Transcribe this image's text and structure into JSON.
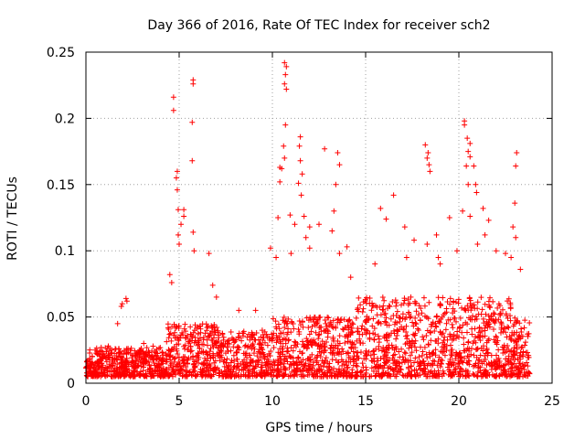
{
  "chart_data": {
    "type": "scatter",
    "title": "Day 366 of 2016, Rate Of TEC Index for receiver sch2",
    "xlabel": "GPS time / hours",
    "ylabel": "ROTI / TECUs",
    "xlim": [
      0,
      25
    ],
    "ylim": [
      0,
      0.25
    ],
    "x_ticks": [
      0,
      5,
      10,
      15,
      20,
      25
    ],
    "x_tick_labels": [
      "0",
      "5",
      "10",
      "15",
      "20",
      "25"
    ],
    "y_ticks": [
      0,
      0.05,
      0.1,
      0.15,
      0.2,
      0.25
    ],
    "y_tick_labels": [
      "0",
      "0.05",
      "0.1",
      "0.15",
      "0.2",
      "0.25"
    ],
    "grid": true,
    "marker": "+",
    "marker_color": "#ff0000",
    "series": [
      {
        "name": "ROTI",
        "points": [
          [
            4.7,
            0.216
          ],
          [
            4.7,
            0.206
          ],
          [
            5.75,
            0.229
          ],
          [
            5.75,
            0.226
          ],
          [
            5.7,
            0.197
          ],
          [
            5.7,
            0.168
          ],
          [
            4.9,
            0.16
          ],
          [
            4.85,
            0.155
          ],
          [
            4.9,
            0.146
          ],
          [
            4.95,
            0.131
          ],
          [
            5.1,
            0.12
          ],
          [
            5.25,
            0.131
          ],
          [
            5.25,
            0.126
          ],
          [
            4.95,
            0.112
          ],
          [
            5.0,
            0.105
          ],
          [
            5.75,
            0.114
          ],
          [
            5.8,
            0.1
          ],
          [
            6.6,
            0.098
          ],
          [
            4.5,
            0.082
          ],
          [
            4.6,
            0.076
          ],
          [
            10.65,
            0.242
          ],
          [
            10.75,
            0.239
          ],
          [
            10.7,
            0.233
          ],
          [
            10.65,
            0.226
          ],
          [
            10.75,
            0.222
          ],
          [
            10.7,
            0.195
          ],
          [
            10.6,
            0.179
          ],
          [
            10.65,
            0.17
          ],
          [
            10.4,
            0.163
          ],
          [
            10.5,
            0.162
          ],
          [
            10.4,
            0.152
          ],
          [
            11.5,
            0.186
          ],
          [
            11.45,
            0.179
          ],
          [
            11.5,
            0.168
          ],
          [
            11.6,
            0.158
          ],
          [
            11.4,
            0.151
          ],
          [
            11.55,
            0.142
          ],
          [
            11.7,
            0.126
          ],
          [
            11.8,
            0.11
          ],
          [
            12.8,
            0.177
          ],
          [
            13.5,
            0.174
          ],
          [
            13.6,
            0.165
          ],
          [
            13.4,
            0.15
          ],
          [
            13.3,
            0.13
          ],
          [
            13.2,
            0.115
          ],
          [
            12.5,
            0.12
          ],
          [
            12.0,
            0.118
          ],
          [
            11.2,
            0.12
          ],
          [
            10.95,
            0.127
          ],
          [
            10.3,
            0.125
          ],
          [
            9.9,
            0.102
          ],
          [
            10.2,
            0.095
          ],
          [
            11.0,
            0.098
          ],
          [
            12.0,
            0.102
          ],
          [
            13.6,
            0.098
          ],
          [
            14.0,
            0.103
          ],
          [
            14.2,
            0.08
          ],
          [
            16.5,
            0.142
          ],
          [
            15.8,
            0.132
          ],
          [
            16.1,
            0.124
          ],
          [
            17.1,
            0.118
          ],
          [
            17.6,
            0.108
          ],
          [
            18.2,
            0.18
          ],
          [
            18.35,
            0.174
          ],
          [
            18.3,
            0.17
          ],
          [
            18.4,
            0.165
          ],
          [
            18.45,
            0.16
          ],
          [
            18.3,
            0.105
          ],
          [
            18.8,
            0.112
          ],
          [
            19.5,
            0.125
          ],
          [
            20.3,
            0.198
          ],
          [
            20.3,
            0.195
          ],
          [
            20.45,
            0.185
          ],
          [
            20.6,
            0.181
          ],
          [
            20.5,
            0.175
          ],
          [
            20.6,
            0.171
          ],
          [
            20.8,
            0.164
          ],
          [
            20.9,
            0.15
          ],
          [
            20.95,
            0.144
          ],
          [
            20.5,
            0.15
          ],
          [
            20.4,
            0.164
          ],
          [
            20.2,
            0.13
          ],
          [
            20.6,
            0.126
          ],
          [
            21.3,
            0.132
          ],
          [
            21.6,
            0.123
          ],
          [
            21.4,
            0.112
          ],
          [
            23.1,
            0.174
          ],
          [
            23.05,
            0.164
          ],
          [
            23.0,
            0.136
          ],
          [
            22.9,
            0.118
          ],
          [
            23.05,
            0.11
          ],
          [
            22.5,
            0.098
          ],
          [
            23.3,
            0.086
          ],
          [
            19.9,
            0.1
          ],
          [
            21.0,
            0.105
          ],
          [
            2.15,
            0.064
          ],
          [
            2.2,
            0.062
          ],
          [
            1.95,
            0.06
          ],
          [
            1.9,
            0.058
          ],
          [
            1.7,
            0.045
          ],
          [
            7.0,
            0.065
          ],
          [
            6.8,
            0.074
          ],
          [
            8.2,
            0.055
          ],
          [
            9.1,
            0.055
          ],
          [
            15.5,
            0.09
          ],
          [
            17.2,
            0.095
          ],
          [
            18.9,
            0.095
          ],
          [
            19.0,
            0.09
          ],
          [
            22.0,
            0.1
          ],
          [
            22.8,
            0.095
          ],
          [
            0.5,
            0.025
          ],
          [
            1.2,
            0.028
          ],
          [
            3.1,
            0.03
          ],
          [
            3.6,
            0.028
          ]
        ]
      }
    ]
  }
}
